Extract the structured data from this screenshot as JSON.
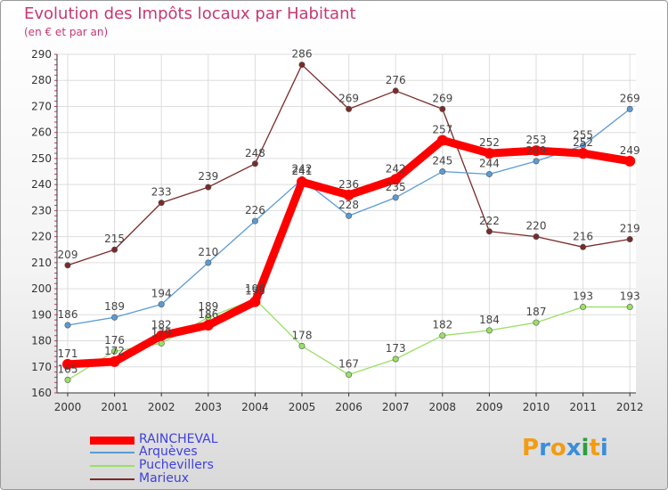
{
  "chart_data": {
    "type": "line",
    "title": "Evolution des Impôts locaux par Habitant",
    "subtitle": "(en € et par an)",
    "xlabel": "",
    "ylabel": "",
    "ylim": [
      160,
      290
    ],
    "yticks": [
      "160",
      "170",
      "180",
      "190",
      "200",
      "210",
      "220",
      "230",
      "240",
      "250",
      "260",
      "270",
      "280",
      "290"
    ],
    "categories": [
      "2000",
      "2001",
      "2002",
      "2003",
      "2004",
      "2005",
      "2006",
      "2007",
      "2008",
      "2009",
      "2010",
      "2011",
      "2012"
    ],
    "series": [
      {
        "name": "RAINCHEVAL",
        "color": "#ff0000",
        "values": [
          171,
          172,
          182,
          186,
          195,
          241,
          236,
          242,
          257,
          252,
          253,
          252,
          249
        ]
      },
      {
        "name": "Arquèves",
        "color": "#5b9bd5",
        "values": [
          186,
          189,
          194,
          210,
          226,
          242,
          228,
          235,
          245,
          244,
          249,
          255,
          269
        ]
      },
      {
        "name": "Puchevillers",
        "color": "#99e066",
        "values": [
          165,
          176,
          179,
          189,
          196,
          178,
          167,
          173,
          182,
          184,
          187,
          193,
          193
        ]
      },
      {
        "name": "Marieux",
        "color": "#7b2a2a",
        "values": [
          209,
          215,
          233,
          239,
          248,
          286,
          269,
          276,
          269,
          222,
          220,
          216,
          219
        ]
      }
    ],
    "legend_position": "bottom-left",
    "grid": true
  },
  "logo": {
    "text": "Proxiti",
    "colors": [
      "#f39c12",
      "#3b8ed9",
      "#f39c12",
      "#3b8ed9",
      "#2e9e3e",
      "#f39c12",
      "#3b8ed9"
    ]
  }
}
